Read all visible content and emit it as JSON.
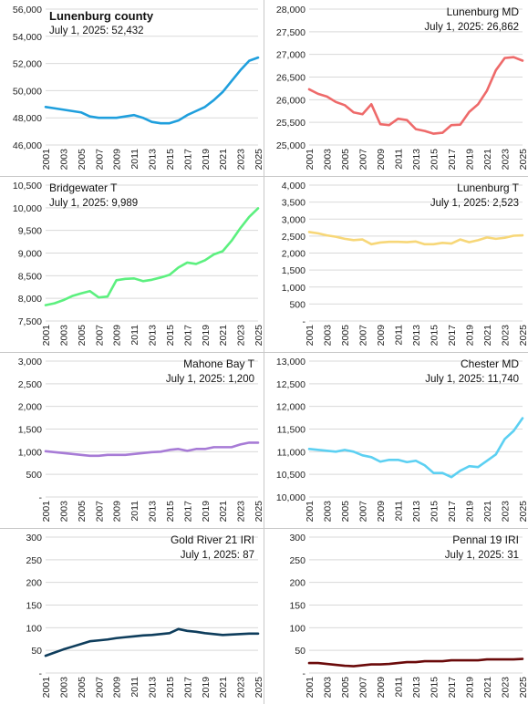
{
  "chart_data": [
    {
      "type": "line",
      "title": "Lunenburg county",
      "subtitle": "July 1, 2025: 52,432",
      "title_bold": true,
      "title_align": "left",
      "color": "#1f9fdd",
      "x": [
        2001,
        2002,
        2003,
        2004,
        2005,
        2006,
        2007,
        2008,
        2009,
        2010,
        2011,
        2012,
        2013,
        2014,
        2015,
        2016,
        2017,
        2018,
        2019,
        2020,
        2021,
        2022,
        2023,
        2024,
        2025
      ],
      "x_tick_labels": [
        "2001",
        "2003",
        "2005",
        "2007",
        "2009",
        "2011",
        "2013",
        "2015",
        "2017",
        "2019",
        "2021",
        "2023",
        "2025"
      ],
      "y_ticks": [
        46000,
        48000,
        50000,
        52000,
        54000,
        56000
      ],
      "y_tick_labels": [
        "46,000",
        "48,000",
        "50,000",
        "52,000",
        "54,000",
        "56,000"
      ],
      "ylim": [
        46000,
        56000
      ],
      "grid": true,
      "series": [
        {
          "values": [
            48800,
            48700,
            48600,
            48500,
            48400,
            48100,
            48000,
            48000,
            48000,
            48100,
            48200,
            48000,
            47700,
            47600,
            47600,
            47800,
            48200,
            48500,
            48800,
            49300,
            49900,
            50700,
            51500,
            52200,
            52432
          ]
        }
      ]
    },
    {
      "type": "line",
      "title": "Lunenburg MD",
      "subtitle": "July 1, 2025: 26,862",
      "title_bold": false,
      "title_align": "right",
      "color": "#ee6a6a",
      "x": [
        2001,
        2002,
        2003,
        2004,
        2005,
        2006,
        2007,
        2008,
        2009,
        2010,
        2011,
        2012,
        2013,
        2014,
        2015,
        2016,
        2017,
        2018,
        2019,
        2020,
        2021,
        2022,
        2023,
        2024,
        2025
      ],
      "x_tick_labels": [
        "2001",
        "2003",
        "2005",
        "2007",
        "2009",
        "2011",
        "2013",
        "2015",
        "2017",
        "2019",
        "2021",
        "2023",
        "2025"
      ],
      "y_ticks": [
        25000,
        25500,
        26000,
        26500,
        27000,
        27500,
        28000
      ],
      "y_tick_labels": [
        "25,000",
        "25,500",
        "26,000",
        "26,500",
        "27,000",
        "27,500",
        "28,000"
      ],
      "ylim": [
        25000,
        28000
      ],
      "grid": true,
      "series": [
        {
          "values": [
            26230,
            26130,
            26070,
            25950,
            25880,
            25720,
            25680,
            25900,
            25460,
            25440,
            25580,
            25550,
            25350,
            25310,
            25250,
            25270,
            25440,
            25450,
            25730,
            25900,
            26200,
            26650,
            26920,
            26940,
            26862
          ]
        }
      ]
    },
    {
      "type": "line",
      "title": "Bridgewater T",
      "subtitle": "July 1, 2025: 9,989",
      "title_bold": false,
      "title_align": "left",
      "color": "#5cf07f",
      "x": [
        2001,
        2002,
        2003,
        2004,
        2005,
        2006,
        2007,
        2008,
        2009,
        2010,
        2011,
        2012,
        2013,
        2014,
        2015,
        2016,
        2017,
        2018,
        2019,
        2020,
        2021,
        2022,
        2023,
        2024,
        2025
      ],
      "x_tick_labels": [
        "2001",
        "2003",
        "2005",
        "2007",
        "2009",
        "2011",
        "2013",
        "2015",
        "2017",
        "2019",
        "2021",
        "2023",
        "2025"
      ],
      "y_ticks": [
        7500,
        8000,
        8500,
        9000,
        9500,
        10000,
        10500
      ],
      "y_tick_labels": [
        "7,500",
        "8,000",
        "8,500",
        "9,000",
        "9,500",
        "10,000",
        "10,500"
      ],
      "ylim": [
        7500,
        10500
      ],
      "grid": true,
      "series": [
        {
          "values": [
            7850,
            7890,
            7960,
            8050,
            8110,
            8160,
            8020,
            8040,
            8400,
            8430,
            8440,
            8380,
            8410,
            8460,
            8520,
            8680,
            8790,
            8760,
            8840,
            8970,
            9040,
            9270,
            9550,
            9800,
            9989
          ]
        }
      ]
    },
    {
      "type": "line",
      "title": "Lunenburg T",
      "subtitle": "July 1, 2025: 2,523",
      "title_bold": false,
      "title_align": "right",
      "color": "#f7d778",
      "x": [
        2001,
        2002,
        2003,
        2004,
        2005,
        2006,
        2007,
        2008,
        2009,
        2010,
        2011,
        2012,
        2013,
        2014,
        2015,
        2016,
        2017,
        2018,
        2019,
        2020,
        2021,
        2022,
        2023,
        2024,
        2025
      ],
      "x_tick_labels": [
        "2001",
        "2003",
        "2005",
        "2007",
        "2009",
        "2011",
        "2013",
        "2015",
        "2017",
        "2019",
        "2021",
        "2023",
        "2025"
      ],
      "y_ticks": [
        0,
        500,
        1000,
        1500,
        2000,
        2500,
        3000,
        3500,
        4000
      ],
      "y_tick_labels": [
        "-",
        "500",
        "1,000",
        "1,500",
        "2,000",
        "2,500",
        "3,000",
        "3,500",
        "4,000"
      ],
      "ylim": [
        0,
        4000
      ],
      "grid": true,
      "series": [
        {
          "values": [
            2620,
            2580,
            2520,
            2480,
            2420,
            2380,
            2400,
            2260,
            2310,
            2330,
            2330,
            2320,
            2340,
            2260,
            2260,
            2300,
            2280,
            2400,
            2320,
            2380,
            2460,
            2420,
            2450,
            2510,
            2523
          ]
        }
      ]
    },
    {
      "type": "line",
      "title": "Mahone Bay T",
      "subtitle": "July 1, 2025: 1,200",
      "title_bold": false,
      "title_align": "right",
      "color": "#a77bd6",
      "x": [
        2001,
        2002,
        2003,
        2004,
        2005,
        2006,
        2007,
        2008,
        2009,
        2010,
        2011,
        2012,
        2013,
        2014,
        2015,
        2016,
        2017,
        2018,
        2019,
        2020,
        2021,
        2022,
        2023,
        2024,
        2025
      ],
      "x_tick_labels": [
        "2001",
        "2003",
        "2005",
        "2007",
        "2009",
        "2011",
        "2013",
        "2015",
        "2017",
        "2019",
        "2021",
        "2023",
        "2025"
      ],
      "y_ticks": [
        0,
        500,
        1000,
        1500,
        2000,
        2500,
        3000
      ],
      "y_tick_labels": [
        "-",
        "500",
        "1,000",
        "1,500",
        "2,000",
        "2,500",
        "3,000"
      ],
      "ylim": [
        0,
        3000
      ],
      "grid": true,
      "series": [
        {
          "values": [
            1010,
            990,
            970,
            950,
            930,
            910,
            910,
            930,
            930,
            930,
            950,
            970,
            990,
            1000,
            1040,
            1060,
            1020,
            1060,
            1060,
            1100,
            1100,
            1100,
            1160,
            1200,
            1200
          ]
        }
      ]
    },
    {
      "type": "line",
      "title": "Chester MD",
      "subtitle": "July 1, 2025: 11,740",
      "title_bold": false,
      "title_align": "right",
      "color": "#5cd0f2",
      "x": [
        2001,
        2002,
        2003,
        2004,
        2005,
        2006,
        2007,
        2008,
        2009,
        2010,
        2011,
        2012,
        2013,
        2014,
        2015,
        2016,
        2017,
        2018,
        2019,
        2020,
        2021,
        2022,
        2023,
        2024,
        2025
      ],
      "x_tick_labels": [
        "2001",
        "2003",
        "2005",
        "2007",
        "2009",
        "2011",
        "2013",
        "2015",
        "2017",
        "2019",
        "2021",
        "2023",
        "2025"
      ],
      "y_ticks": [
        10000,
        10500,
        11000,
        11500,
        12000,
        12500,
        13000
      ],
      "y_tick_labels": [
        "10,000",
        "10,500",
        "11,000",
        "11,500",
        "12,000",
        "12,500",
        "13,000"
      ],
      "ylim": [
        10000,
        13000
      ],
      "grid": true,
      "series": [
        {
          "values": [
            11060,
            11040,
            11020,
            11000,
            11040,
            11000,
            10920,
            10880,
            10780,
            10820,
            10820,
            10770,
            10800,
            10700,
            10530,
            10530,
            10440,
            10580,
            10680,
            10660,
            10800,
            10940,
            11280,
            11460,
            11740
          ]
        }
      ]
    },
    {
      "type": "line",
      "title": "Gold River 21 IRI",
      "subtitle": "July 1, 2025: 87",
      "title_bold": false,
      "title_align": "right",
      "color": "#0e3d5c",
      "x": [
        2001,
        2002,
        2003,
        2004,
        2005,
        2006,
        2007,
        2008,
        2009,
        2010,
        2011,
        2012,
        2013,
        2014,
        2015,
        2016,
        2017,
        2018,
        2019,
        2020,
        2021,
        2022,
        2023,
        2024,
        2025
      ],
      "x_tick_labels": [
        "2001",
        "2003",
        "2005",
        "2007",
        "2009",
        "2011",
        "2013",
        "2015",
        "2017",
        "2019",
        "2021",
        "2023",
        "2025"
      ],
      "y_ticks": [
        0,
        50,
        100,
        150,
        200,
        250,
        300
      ],
      "y_tick_labels": [
        "-",
        "50",
        "100",
        "150",
        "200",
        "250",
        "300"
      ],
      "ylim": [
        0,
        300
      ],
      "grid": true,
      "series": [
        {
          "values": [
            38,
            45,
            52,
            58,
            64,
            70,
            72,
            74,
            77,
            79,
            81,
            83,
            84,
            86,
            88,
            97,
            93,
            91,
            88,
            86,
            84,
            85,
            86,
            87,
            87
          ]
        }
      ]
    },
    {
      "type": "line",
      "title": "Pennal 19 IRI",
      "subtitle": "July 1, 2025: 31",
      "title_bold": false,
      "title_align": "right",
      "color": "#6b0a0a",
      "x": [
        2001,
        2002,
        2003,
        2004,
        2005,
        2006,
        2007,
        2008,
        2009,
        2010,
        2011,
        2012,
        2013,
        2014,
        2015,
        2016,
        2017,
        2018,
        2019,
        2020,
        2021,
        2022,
        2023,
        2024,
        2025
      ],
      "x_tick_labels": [
        "2001",
        "2003",
        "2005",
        "2007",
        "2009",
        "2011",
        "2013",
        "2015",
        "2017",
        "2019",
        "2021",
        "2023",
        "2025"
      ],
      "y_ticks": [
        0,
        50,
        100,
        150,
        200,
        250,
        300
      ],
      "y_tick_labels": [
        "-",
        "50",
        "100",
        "150",
        "200",
        "250",
        "300"
      ],
      "ylim": [
        0,
        300
      ],
      "grid": true,
      "series": [
        {
          "values": [
            22,
            22,
            20,
            18,
            16,
            15,
            17,
            19,
            19,
            20,
            22,
            24,
            24,
            26,
            26,
            26,
            28,
            28,
            28,
            28,
            30,
            30,
            30,
            30,
            31
          ]
        }
      ]
    }
  ]
}
